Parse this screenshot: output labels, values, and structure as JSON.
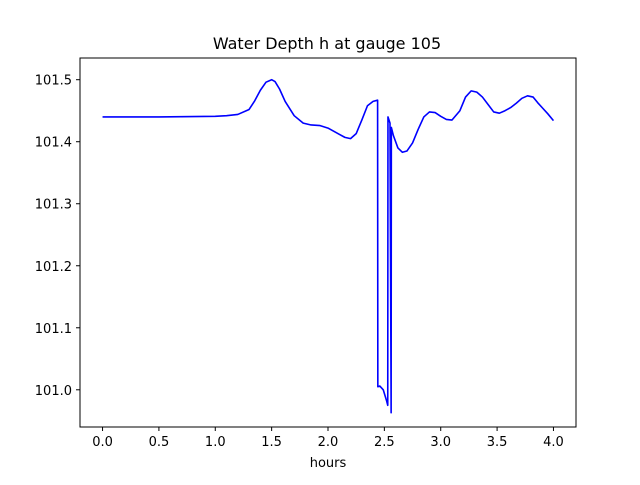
{
  "chart_data": {
    "type": "line",
    "title": "Water Depth h at gauge 105",
    "xlabel": "hours",
    "ylabel": "",
    "xlim": [
      -0.2,
      4.2
    ],
    "ylim": [
      100.94,
      101.535
    ],
    "grid": false,
    "colors": {
      "line": "#0000ff",
      "axes": "#000000",
      "background": "#ffffff"
    },
    "xticks": [
      {
        "value": 0.0,
        "label": "0.0"
      },
      {
        "value": 0.5,
        "label": "0.5"
      },
      {
        "value": 1.0,
        "label": "1.0"
      },
      {
        "value": 1.5,
        "label": "1.5"
      },
      {
        "value": 2.0,
        "label": "2.0"
      },
      {
        "value": 2.5,
        "label": "2.5"
      },
      {
        "value": 3.0,
        "label": "3.0"
      },
      {
        "value": 3.5,
        "label": "3.5"
      },
      {
        "value": 4.0,
        "label": "4.0"
      }
    ],
    "yticks": [
      {
        "value": 101.0,
        "label": "101.0"
      },
      {
        "value": 101.1,
        "label": "101.1"
      },
      {
        "value": 101.2,
        "label": "101.2"
      },
      {
        "value": 101.3,
        "label": "101.3"
      },
      {
        "value": 101.4,
        "label": "101.4"
      },
      {
        "value": 101.5,
        "label": "101.5"
      }
    ],
    "series": [
      {
        "x": [
          0.0,
          0.5,
          1.0,
          1.1,
          1.2,
          1.3,
          1.35,
          1.4,
          1.45,
          1.5,
          1.53,
          1.57,
          1.62,
          1.7,
          1.78,
          1.85,
          1.93,
          2.0,
          2.05,
          2.1,
          2.15,
          2.2,
          2.25,
          2.3,
          2.35,
          2.4,
          2.44,
          2.442,
          2.46,
          2.49,
          2.52,
          2.53,
          2.532,
          2.55,
          2.56,
          2.562,
          2.58,
          2.62,
          2.66,
          2.7,
          2.75,
          2.8,
          2.85,
          2.9,
          2.95,
          3.0,
          3.05,
          3.1,
          3.17,
          3.22,
          3.27,
          3.32,
          3.37,
          3.42,
          3.47,
          3.52,
          3.57,
          3.62,
          3.67,
          3.72,
          3.77,
          3.82,
          3.86,
          3.9,
          3.95,
          4.0
        ],
        "y": [
          101.44,
          101.44,
          101.441,
          101.442,
          101.444,
          101.452,
          101.466,
          101.483,
          101.496,
          101.5,
          101.497,
          101.485,
          101.465,
          101.442,
          101.43,
          101.427,
          101.426,
          101.422,
          101.417,
          101.412,
          101.407,
          101.405,
          101.413,
          101.435,
          101.458,
          101.465,
          101.467,
          101.005,
          101.006,
          101.0,
          100.982,
          100.975,
          101.44,
          101.43,
          100.963,
          101.423,
          101.41,
          101.39,
          101.383,
          101.385,
          101.398,
          101.42,
          101.44,
          101.448,
          101.447,
          101.441,
          101.436,
          101.435,
          101.45,
          101.472,
          101.482,
          101.48,
          101.472,
          101.46,
          101.448,
          101.446,
          101.45,
          101.455,
          101.462,
          101.47,
          101.474,
          101.472,
          101.463,
          101.455,
          101.445,
          101.434
        ]
      }
    ]
  }
}
